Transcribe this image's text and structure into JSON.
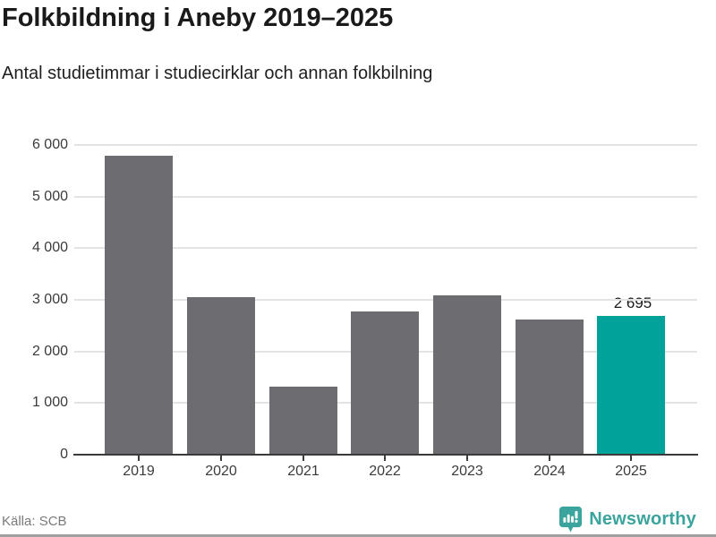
{
  "header": {
    "title": "Folkbildning i Aneby 2019–2025",
    "subtitle": "Antal studietimmar i studiecirklar och annan folkbilning"
  },
  "chart_data": {
    "type": "bar",
    "categories": [
      "2019",
      "2020",
      "2021",
      "2022",
      "2023",
      "2024",
      "2025"
    ],
    "values": [
      5790,
      3050,
      1310,
      2780,
      3080,
      2620,
      2695
    ],
    "highlight_index": 6,
    "annotation": {
      "category": "2025",
      "label": "2 695"
    },
    "title": "Folkbildning i Aneby 2019–2025",
    "subtitle": "Antal studietimmar i studiecirklar och annan folkbilning",
    "xlabel": "",
    "ylabel": "",
    "ylim": [
      0,
      6000
    ],
    "ytick_step": 1000,
    "ytick_labels": [
      "0",
      "1 000",
      "2 000",
      "3 000",
      "4 000",
      "5 000",
      "6 000"
    ],
    "grid": true,
    "legend": false,
    "colors": {
      "bar": "#6c6c71",
      "highlight": "#00a29a"
    }
  },
  "footer": {
    "source": "Källa: SCB",
    "brand": "Newsworthy"
  },
  "icons": {
    "brand_logo": "newsworthy-pin-chart-icon"
  }
}
